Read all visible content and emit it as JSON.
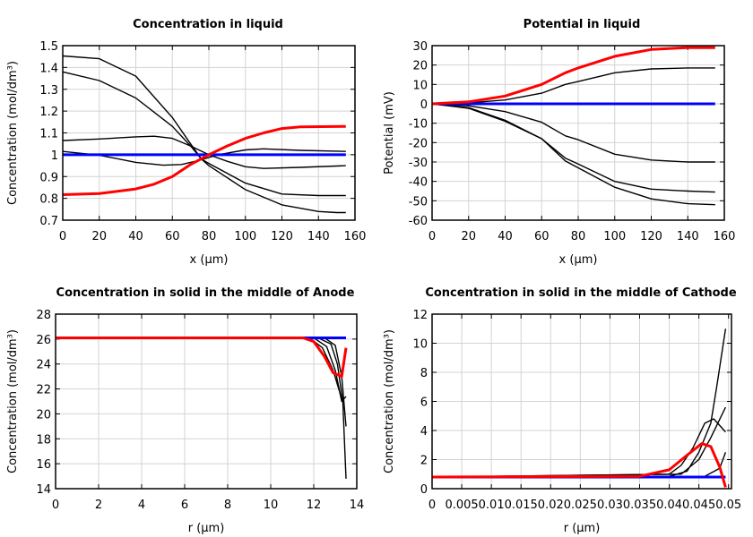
{
  "colors": {
    "red": "#ff0000",
    "blue": "#0000ff",
    "black": "#000000",
    "grid": "#d3d3d3"
  },
  "chart_data": [
    {
      "type": "line",
      "title": "Concentration in liquid",
      "xlabel": "x (µm)",
      "ylabel": "Concentration (mol/dm³)",
      "xlim": [
        0,
        160
      ],
      "ylim": [
        0.7,
        1.5
      ],
      "grid": true,
      "xticks": [
        "0",
        "20",
        "40",
        "60",
        "80",
        "100",
        "120",
        "140",
        "160"
      ],
      "yticks": [
        "0.7",
        "0.8",
        "0.9",
        "1",
        "1.1",
        "1.2",
        "1.3",
        "1.4",
        "1.5"
      ],
      "series": [
        {
          "color": "black",
          "x": [
            0,
            20,
            40,
            60,
            70,
            76,
            80,
            100,
            120,
            140,
            150,
            155
          ],
          "y": [
            1.453,
            1.44,
            1.36,
            1.17,
            1.05,
            0.98,
            0.95,
            0.84,
            0.77,
            0.74,
            0.735,
            0.735
          ]
        },
        {
          "color": "black",
          "x": [
            0,
            20,
            40,
            60,
            70,
            76,
            80,
            100,
            120,
            140,
            155
          ],
          "y": [
            1.38,
            1.34,
            1.26,
            1.13,
            1.04,
            0.98,
            0.96,
            0.87,
            0.82,
            0.813,
            0.813
          ]
        },
        {
          "color": "black",
          "x": [
            0,
            20,
            40,
            50,
            60,
            70,
            80,
            90,
            100,
            110,
            130,
            155
          ],
          "y": [
            1.065,
            1.072,
            1.082,
            1.085,
            1.075,
            1.04,
            1.0,
            0.97,
            0.945,
            0.937,
            0.942,
            0.95
          ]
        },
        {
          "color": "black",
          "x": [
            0,
            20,
            40,
            55,
            65,
            75,
            85,
            100,
            110,
            130,
            155
          ],
          "y": [
            1.015,
            0.998,
            0.965,
            0.952,
            0.955,
            0.975,
            1.0,
            1.022,
            1.027,
            1.02,
            1.015
          ]
        },
        {
          "color": "blue",
          "x": [
            0,
            155
          ],
          "y": [
            1.0,
            1.0
          ]
        },
        {
          "color": "red",
          "x": [
            0,
            20,
            40,
            50,
            60,
            70,
            80,
            90,
            100,
            110,
            120,
            130,
            155
          ],
          "y": [
            0.817,
            0.822,
            0.843,
            0.865,
            0.9,
            0.955,
            1.0,
            1.04,
            1.075,
            1.1,
            1.12,
            1.128,
            1.13
          ]
        }
      ]
    },
    {
      "type": "line",
      "title": "Potential in liquid",
      "xlabel": "x (µm)",
      "ylabel": "Potential (mV)",
      "xlim": [
        0,
        160
      ],
      "ylim": [
        -60,
        30
      ],
      "grid": true,
      "xticks": [
        "0",
        "20",
        "40",
        "60",
        "80",
        "100",
        "120",
        "140",
        "160"
      ],
      "yticks": [
        "-60",
        "-50",
        "-40",
        "-30",
        "-20",
        "-10",
        "0",
        "10",
        "20",
        "30"
      ],
      "series": [
        {
          "color": "black",
          "x": [
            0,
            20,
            40,
            60,
            73,
            80,
            100,
            120,
            140,
            155
          ],
          "y": [
            0,
            0.5,
            2,
            5.5,
            10,
            11.5,
            16,
            18,
            18.5,
            18.5
          ]
        },
        {
          "color": "black",
          "x": [
            0,
            20,
            40,
            60,
            73,
            80,
            100,
            120,
            140,
            155
          ],
          "y": [
            0,
            -1,
            -4,
            -9.5,
            -16.5,
            -18.5,
            -26,
            -29,
            -30,
            -30
          ]
        },
        {
          "color": "black",
          "x": [
            0,
            20,
            40,
            60,
            73,
            80,
            100,
            120,
            140,
            155
          ],
          "y": [
            0,
            -2,
            -8.5,
            -18,
            -28,
            -31,
            -40,
            -44,
            -45,
            -45.5
          ]
        },
        {
          "color": "black",
          "x": [
            0,
            20,
            40,
            60,
            73,
            80,
            100,
            120,
            140,
            155
          ],
          "y": [
            0,
            -2.3,
            -9,
            -18,
            -29.5,
            -33,
            -43,
            -49,
            -51.5,
            -52
          ]
        },
        {
          "color": "blue",
          "x": [
            0,
            155
          ],
          "y": [
            0,
            0
          ]
        },
        {
          "color": "red",
          "x": [
            0,
            20,
            40,
            60,
            73,
            80,
            100,
            120,
            140,
            155
          ],
          "y": [
            0,
            1,
            4,
            10,
            16,
            18.5,
            24.5,
            28,
            29,
            29
          ]
        }
      ]
    },
    {
      "type": "line",
      "title": "Concentration in solid in the middle of Anode",
      "xlabel": "r (µm)",
      "ylabel": "Concentration (mol/dm³)",
      "xlim": [
        0,
        14
      ],
      "ylim": [
        14,
        28
      ],
      "grid": true,
      "xticks": [
        "0",
        "2",
        "4",
        "6",
        "8",
        "10",
        "12",
        "14"
      ],
      "yticks": [
        "14",
        "16",
        "18",
        "20",
        "22",
        "24",
        "26",
        "28"
      ],
      "series": [
        {
          "color": "black",
          "x": [
            0,
            12.2,
            12.8,
            13.1,
            13.35,
            13.5
          ],
          "y": [
            26.1,
            26.1,
            25.6,
            24,
            21,
            14.8
          ]
        },
        {
          "color": "black",
          "x": [
            0,
            12.5,
            13,
            13.3,
            13.5
          ],
          "y": [
            26.1,
            26.1,
            25.5,
            23,
            19
          ]
        },
        {
          "color": "black",
          "x": [
            0,
            12,
            12.6,
            13,
            13.3,
            13.5
          ],
          "y": [
            26.1,
            26.1,
            25.4,
            23.5,
            21,
            21.4
          ]
        },
        {
          "color": "black",
          "x": [
            0,
            11.8,
            12.4,
            12.9,
            13.3
          ],
          "y": [
            26.1,
            26.1,
            25.3,
            23.5,
            21.2
          ]
        },
        {
          "color": "blue",
          "x": [
            0,
            13.5
          ],
          "y": [
            26.1,
            26.1
          ]
        },
        {
          "color": "red",
          "x": [
            0,
            11.5,
            12,
            12.5,
            12.9,
            13.3,
            13.5
          ],
          "y": [
            26.1,
            26.1,
            25.8,
            24.6,
            23.3,
            23.0,
            25.3
          ]
        }
      ]
    },
    {
      "type": "line",
      "title": "Concentration in solid in the middle of Cathode",
      "xlabel": "r (µm)",
      "ylabel": "Concentration (mol/dm³)",
      "xlim": [
        0,
        0.0505
      ],
      "ylim": [
        0,
        12
      ],
      "grid": true,
      "xticks": [
        "0",
        "0.005",
        "0.01",
        "0.015",
        "0.02",
        "0.025",
        "0.03",
        "0.035",
        "0.04",
        "0.045",
        "0.05"
      ],
      "yticks": [
        "0",
        "2",
        "4",
        "6",
        "8",
        "10",
        "12"
      ],
      "series": [
        {
          "color": "black",
          "x": [
            0,
            0.04,
            0.043,
            0.045,
            0.047,
            0.048,
            0.0495
          ],
          "y": [
            0.8,
            0.85,
            1.2,
            2.5,
            4.5,
            7,
            11
          ]
        },
        {
          "color": "black",
          "x": [
            0,
            0.04,
            0.042,
            0.044,
            0.046,
            0.0475,
            0.0495
          ],
          "y": [
            0.8,
            1.0,
            1.6,
            2.8,
            4.5,
            4.8,
            3.9
          ]
        },
        {
          "color": "black",
          "x": [
            0,
            0.042,
            0.045,
            0.047,
            0.0495
          ],
          "y": [
            0.8,
            1.0,
            2,
            3.5,
            5.6
          ]
        },
        {
          "color": "black",
          "x": [
            0,
            0.046,
            0.0485,
            0.0495
          ],
          "y": [
            0.8,
            0.85,
            1.4,
            2.5
          ]
        },
        {
          "color": "blue",
          "x": [
            0,
            0.0495
          ],
          "y": [
            0.8,
            0.8
          ]
        },
        {
          "color": "red",
          "x": [
            0,
            0.035,
            0.04,
            0.043,
            0.0455,
            0.047,
            0.0485,
            0.0495
          ],
          "y": [
            0.8,
            0.85,
            1.3,
            2.3,
            3.1,
            2.9,
            1.5,
            0.1
          ]
        }
      ]
    }
  ]
}
